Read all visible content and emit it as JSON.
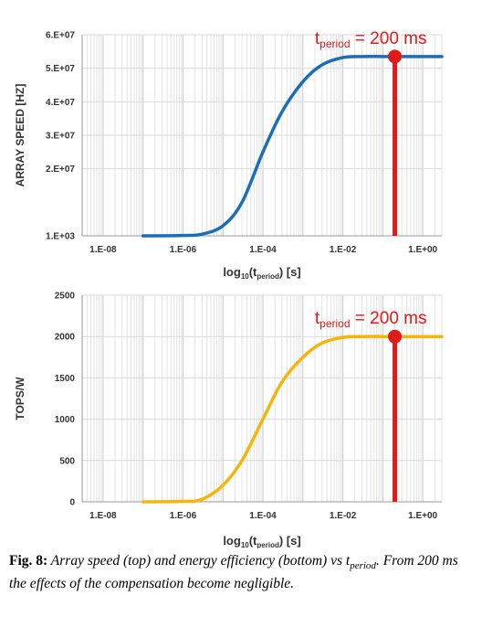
{
  "charts": [
    {
      "type": "line",
      "ylabel": "ARRAY SPEED [HZ]",
      "xlabel": "log10(tperiod) [s]",
      "xlabel_main": "log",
      "xlabel_sub1": "10",
      "xlabel_paren": "(t",
      "xlabel_sub2": "period",
      "xlabel_tail": ") [s]",
      "x_scale": "log",
      "xlim": [
        3e-09,
        3
      ],
      "ylim": [
        1000,
        60000000
      ],
      "xticks": [
        "1.E-08",
        "1.E-06",
        "1.E-04",
        "1.E-02",
        "1.E+00"
      ],
      "yticks": [
        "1.E+03",
        "2.E+07",
        "3.E+07",
        "4.E+07",
        "5.E+07",
        "6.E+07"
      ],
      "ytick_values": [
        1000,
        20000000,
        30000000,
        40000000,
        50000000,
        60000000
      ],
      "color": "#1a6eb8",
      "x": [
        1e-07,
        1e-06,
        3e-06,
        1e-05,
        3e-05,
        0.0001,
        0.0003,
        0.001,
        0.003,
        0.01,
        0.03,
        0.1,
        0.2,
        1,
        3
      ],
      "y": [
        1000,
        100000,
        500000,
        3000000,
        10000000,
        25000000,
        37000000,
        46000000,
        51000000,
        53200000,
        53500000,
        53500000,
        53500000,
        53500000,
        53500000
      ],
      "annotation": {
        "t": "t",
        "sub": "period",
        "rest": " = 200 ms",
        "x": 0.2,
        "y": 53500000,
        "color": "#e11a1a"
      }
    },
    {
      "type": "line",
      "ylabel": "TOPS/W",
      "xlabel": "log10(tperiod) [s]",
      "xlabel_main": "log",
      "xlabel_sub1": "10",
      "xlabel_paren": "(t",
      "xlabel_sub2": "period",
      "xlabel_tail": ") [s]",
      "x_scale": "log",
      "xlim": [
        3e-09,
        3
      ],
      "ylim": [
        0,
        2500
      ],
      "xticks": [
        "1.E-08",
        "1.E-06",
        "1.E-04",
        "1.E-02",
        "1.E+00"
      ],
      "yticks": [
        "0",
        "500",
        "1000",
        "1500",
        "2000",
        "2500"
      ],
      "ytick_values": [
        0,
        500,
        1000,
        1500,
        2000,
        2500
      ],
      "color": "#f5b50a",
      "x": [
        1e-07,
        1e-06,
        3e-06,
        1e-05,
        3e-05,
        0.0001,
        0.0003,
        0.001,
        0.003,
        0.01,
        0.03,
        0.1,
        0.2,
        1,
        3
      ],
      "y": [
        0,
        5,
        30,
        200,
        500,
        1000,
        1450,
        1750,
        1920,
        1990,
        2000,
        2000,
        2000,
        2000,
        2000
      ],
      "annotation": {
        "t": "t",
        "sub": "period",
        "rest": " = 200 ms",
        "x": 0.2,
        "y": 2000,
        "color": "#e11a1a"
      }
    }
  ],
  "caption": {
    "label": "Fig. 8:",
    "text1": " Array speed (top) and energy efficiency (bottom) vs ",
    "t": "t",
    "sub": "period",
    "text2": ". From 200 ms the effects of the compensation become negligible."
  }
}
